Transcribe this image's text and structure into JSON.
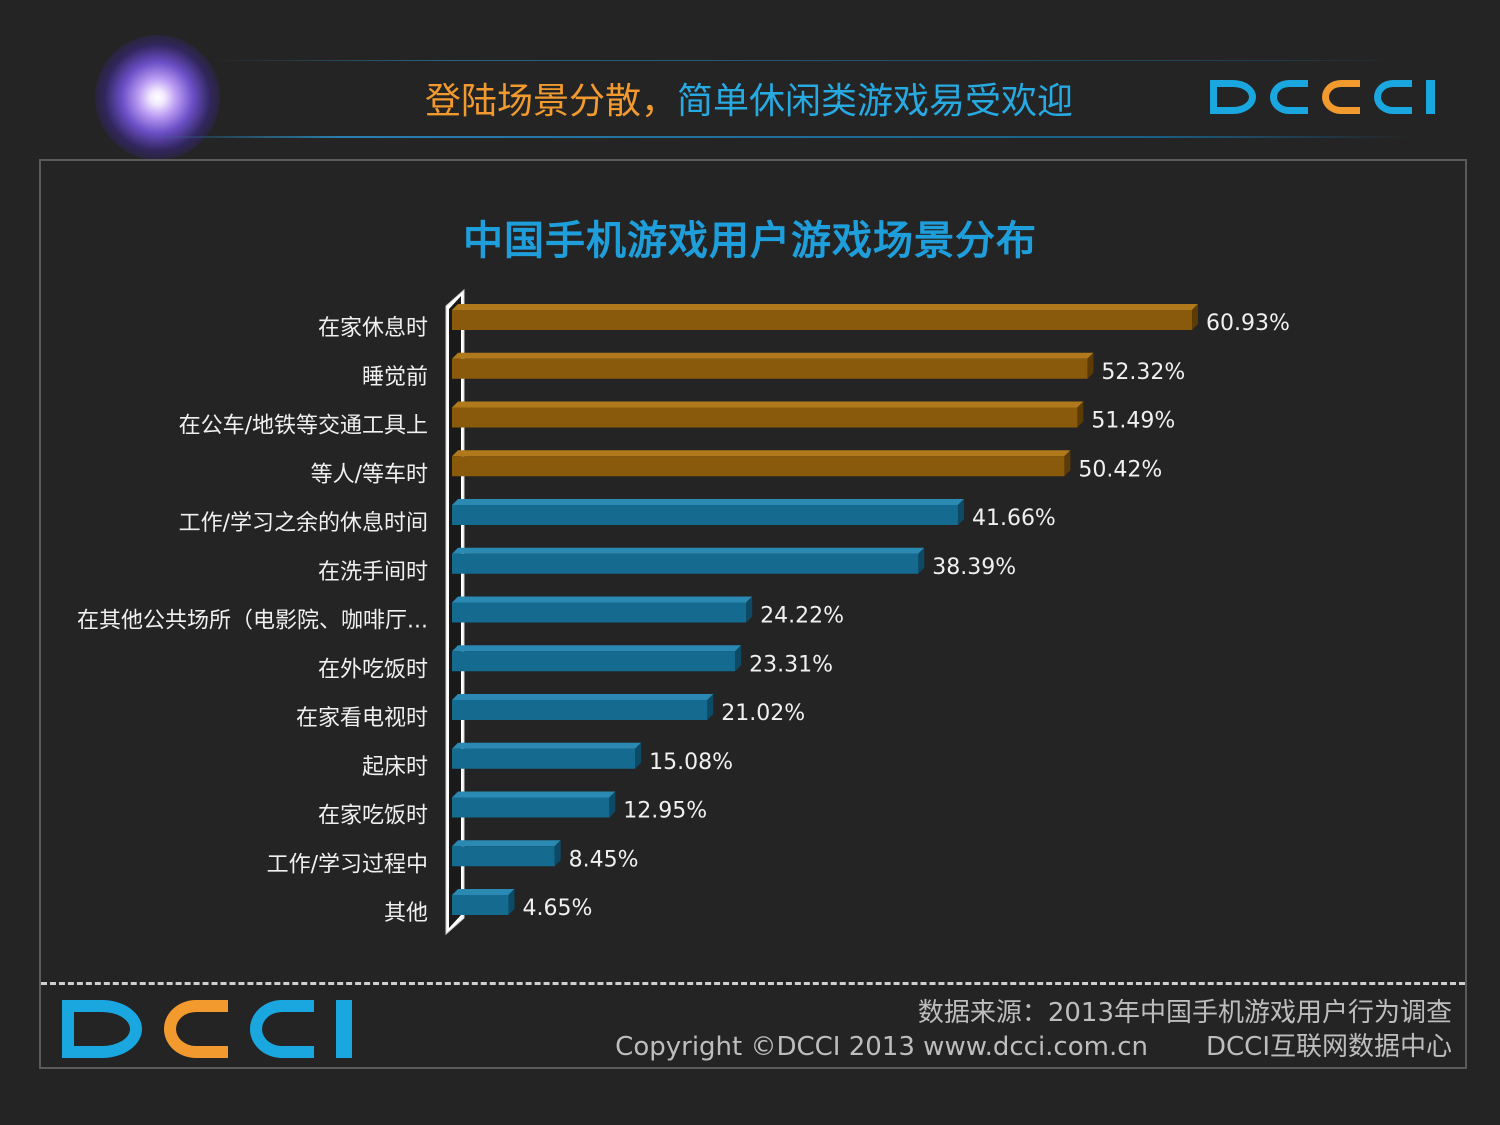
{
  "header": {
    "headline_part1": "登陆场景分散，",
    "headline_part2": "简单休闲类游戏易受欢迎",
    "logo_text": "DCCI"
  },
  "colors": {
    "orange_bar": "#8a5a0c",
    "blue_bar": "#146a8f",
    "accent_blue": "#1aa7e0",
    "accent_orange": "#f29a2e"
  },
  "chart_data": {
    "type": "bar",
    "orientation": "horizontal",
    "title": "中国手机游戏用户游戏场景分布",
    "categories": [
      "在家休息时",
      "睡觉前",
      "在公车/地铁等交通工具上",
      "等人/等车时",
      "工作/学习之余的休息时间",
      "在洗手间时",
      "在其他公共场所（电影院、咖啡厅...",
      "在外吃饭时",
      "在家看电视时",
      "起床时",
      "在家吃饭时",
      "工作/学习过程中",
      "其他"
    ],
    "values": [
      60.93,
      52.32,
      51.49,
      50.42,
      41.66,
      38.39,
      24.22,
      23.31,
      21.02,
      15.08,
      12.95,
      8.45,
      4.65
    ],
    "value_labels": [
      "60.93%",
      "52.32%",
      "51.49%",
      "50.42%",
      "41.66%",
      "38.39%",
      "24.22%",
      "23.31%",
      "21.02%",
      "15.08%",
      "12.95%",
      "8.45%",
      "4.65%"
    ],
    "highlight_count": 4,
    "unit": "%",
    "xlim": [
      0,
      60.93
    ],
    "grid": false,
    "legend": "none"
  },
  "footer": {
    "source": "数据来源：2013年中国手机游戏用户行为调查",
    "copyright": "Copyright ©DCCI 2013 www.dcci.com.cn",
    "org": "DCCI互联网数据中心",
    "logo_text": "DCCI"
  }
}
